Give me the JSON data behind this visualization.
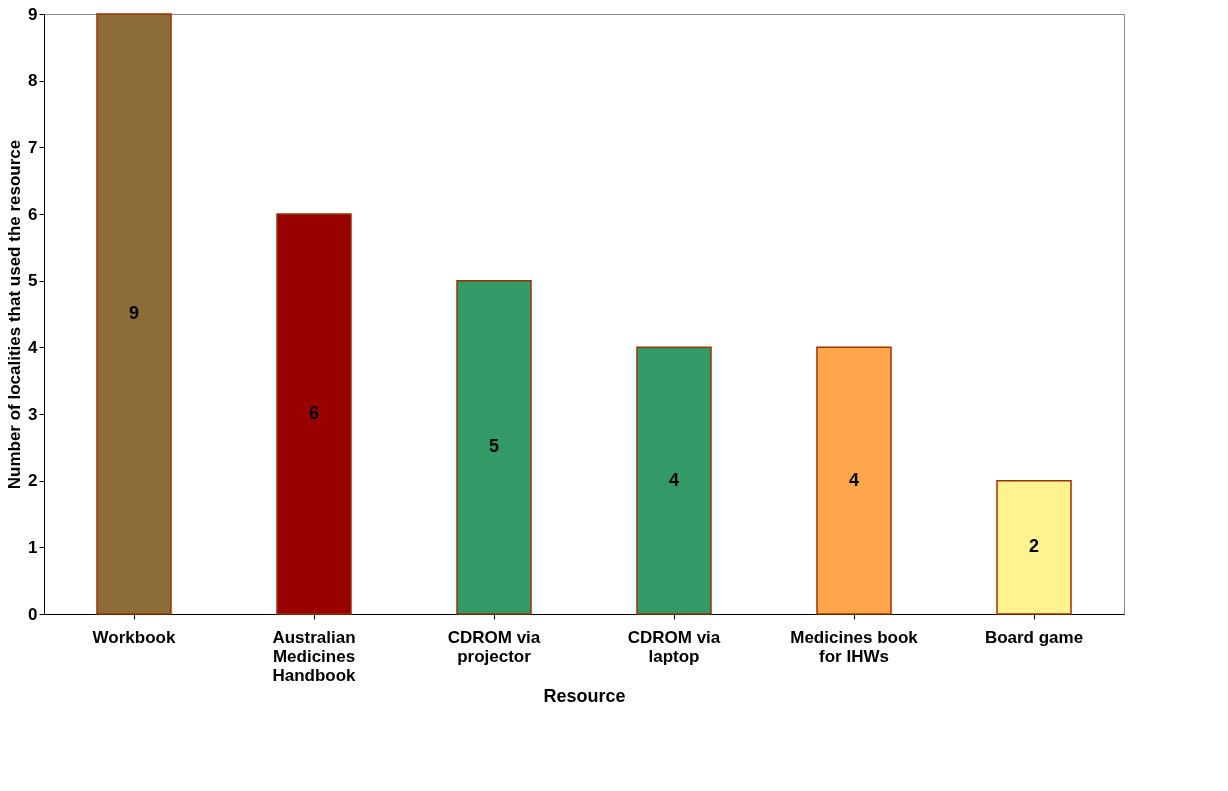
{
  "chart_data": {
    "type": "bar",
    "xlabel": "Resource",
    "ylabel": "Number of localities that used the resource",
    "categories": [
      "Workbook",
      "Australian\nMedicines\nHandbook",
      "CDROM via\nprojector",
      "CDROM via\nlaptop",
      "Medicines book\nfor IHWs",
      "Board game"
    ],
    "values": [
      9,
      6,
      5,
      4,
      4,
      2
    ],
    "colors": [
      "#8c6d3a",
      "#990000",
      "#339966",
      "#339966",
      "#ffa64d",
      "#fff38f"
    ],
    "ylim": [
      0,
      9
    ],
    "yticks": [
      0,
      1,
      2,
      3,
      4,
      5,
      6,
      7,
      8,
      9
    ],
    "grid": false,
    "legend": false,
    "data_labels": true
  }
}
